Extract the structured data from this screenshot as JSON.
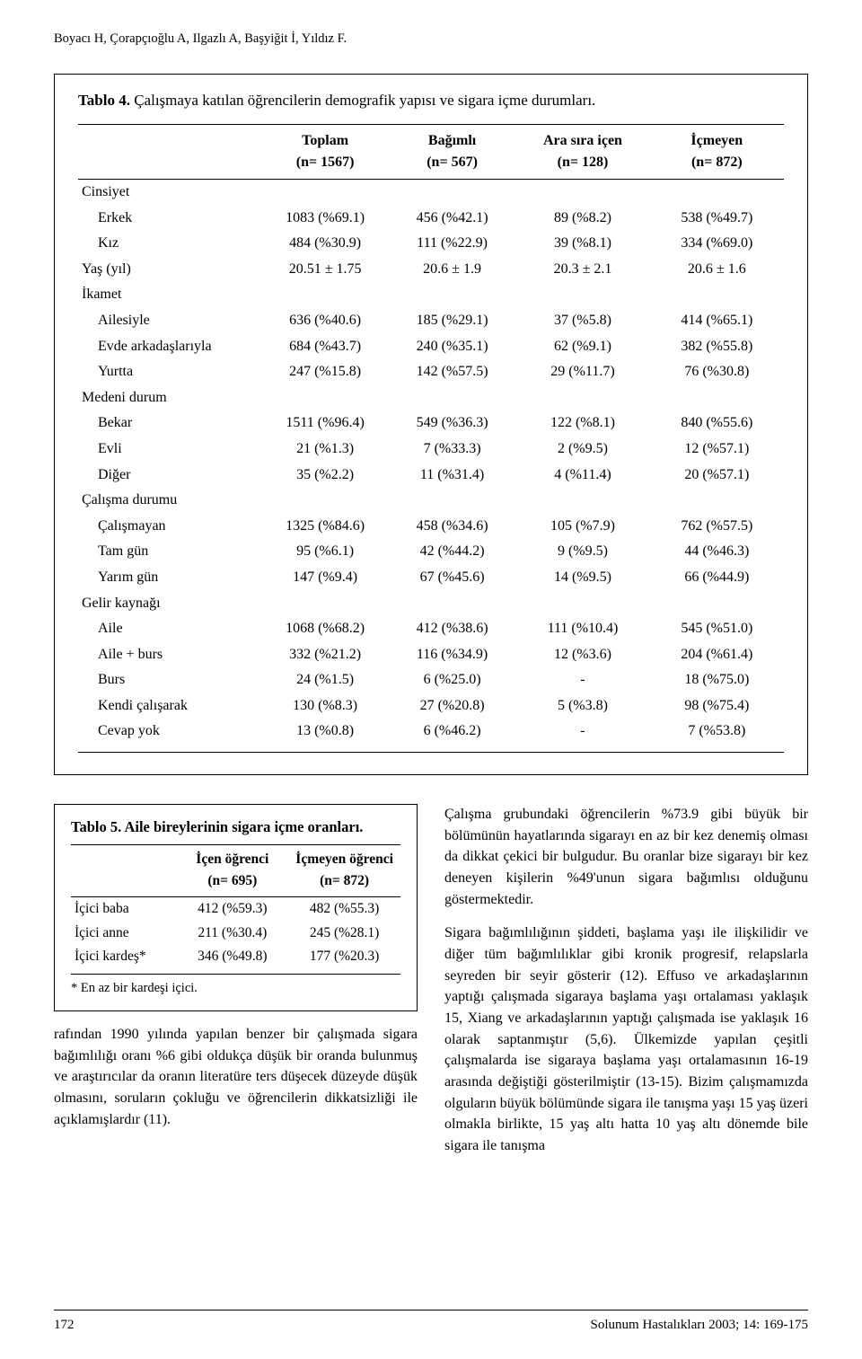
{
  "running_head": "Boyacı H, Çorapçıoğlu A, Ilgazlı A, Başyiğit İ, Yıldız F.",
  "table4": {
    "title_prefix": "Tablo 4. ",
    "title_rest": "Çalışmaya katılan öğrencilerin demografik yapısı ve sigara içme durumları.",
    "columns_line1": [
      "",
      "Toplam",
      "Bağımlı",
      "Ara sıra içen",
      "İçmeyen"
    ],
    "columns_line2": [
      "",
      "(n= 1567)",
      "(n= 567)",
      "(n= 128)",
      "(n= 872)"
    ],
    "col_widths_pct": [
      26,
      18,
      18,
      19,
      19
    ],
    "rows": [
      {
        "type": "section",
        "label": "Cinsiyet"
      },
      {
        "type": "data",
        "indent": true,
        "label": "Erkek",
        "v": [
          "1083 (%69.1)",
          "456 (%42.1)",
          "89 (%8.2)",
          "538 (%49.7)"
        ]
      },
      {
        "type": "data",
        "indent": true,
        "label": "Kız",
        "v": [
          "484 (%30.9)",
          "111 (%22.9)",
          "39 (%8.1)",
          "334 (%69.0)"
        ]
      },
      {
        "type": "data",
        "indent": false,
        "label": "Yaş (yıl)",
        "v": [
          "20.51 ± 1.75",
          "20.6 ± 1.9",
          "20.3 ± 2.1",
          "20.6 ± 1.6"
        ]
      },
      {
        "type": "section",
        "label": "İkamet"
      },
      {
        "type": "data",
        "indent": true,
        "label": "Ailesiyle",
        "v": [
          "636 (%40.6)",
          "185 (%29.1)",
          "37 (%5.8)",
          "414 (%65.1)"
        ]
      },
      {
        "type": "data",
        "indent": true,
        "label": "Evde arkadaşlarıyla",
        "v": [
          "684 (%43.7)",
          "240 (%35.1)",
          "62 (%9.1)",
          "382 (%55.8)"
        ]
      },
      {
        "type": "data",
        "indent": true,
        "label": "Yurtta",
        "v": [
          "247 (%15.8)",
          "142 (%57.5)",
          "29 (%11.7)",
          "76 (%30.8)"
        ]
      },
      {
        "type": "section",
        "label": "Medeni durum"
      },
      {
        "type": "data",
        "indent": true,
        "label": "Bekar",
        "v": [
          "1511 (%96.4)",
          "549 (%36.3)",
          "122 (%8.1)",
          "840 (%55.6)"
        ]
      },
      {
        "type": "data",
        "indent": true,
        "label": "Evli",
        "v": [
          "21 (%1.3)",
          "7 (%33.3)",
          "2 (%9.5)",
          "12 (%57.1)"
        ]
      },
      {
        "type": "data",
        "indent": true,
        "label": "Diğer",
        "v": [
          "35 (%2.2)",
          "11 (%31.4)",
          "4 (%11.4)",
          "20 (%57.1)"
        ]
      },
      {
        "type": "section",
        "label": "Çalışma durumu"
      },
      {
        "type": "data",
        "indent": true,
        "label": "Çalışmayan",
        "v": [
          "1325 (%84.6)",
          "458 (%34.6)",
          "105 (%7.9)",
          "762 (%57.5)"
        ]
      },
      {
        "type": "data",
        "indent": true,
        "label": "Tam gün",
        "v": [
          "95 (%6.1)",
          "42 (%44.2)",
          "9 (%9.5)",
          "44 (%46.3)"
        ]
      },
      {
        "type": "data",
        "indent": true,
        "label": "Yarım gün",
        "v": [
          "147 (%9.4)",
          "67 (%45.6)",
          "14 (%9.5)",
          "66 (%44.9)"
        ]
      },
      {
        "type": "section",
        "label": "Gelir kaynağı"
      },
      {
        "type": "data",
        "indent": true,
        "label": "Aile",
        "v": [
          "1068 (%68.2)",
          "412 (%38.6)",
          "111 (%10.4)",
          "545 (%51.0)"
        ]
      },
      {
        "type": "data",
        "indent": true,
        "label": "Aile + burs",
        "v": [
          "332 (%21.2)",
          "116 (%34.9)",
          "12 (%3.6)",
          "204 (%61.4)"
        ]
      },
      {
        "type": "data",
        "indent": true,
        "label": "Burs",
        "v": [
          "24 (%1.5)",
          "6 (%25.0)",
          "-",
          "18 (%75.0)"
        ]
      },
      {
        "type": "data",
        "indent": true,
        "label": "Kendi çalışarak",
        "v": [
          "130 (%8.3)",
          "27 (%20.8)",
          "5 (%3.8)",
          "98 (%75.4)"
        ]
      },
      {
        "type": "data",
        "indent": true,
        "label": "Cevap yok",
        "v": [
          "13 (%0.8)",
          "6 (%46.2)",
          "-",
          "7 (%53.8)"
        ],
        "last": true
      }
    ]
  },
  "table5": {
    "title": "Tablo 5. Aile bireylerinin sigara içme oranları.",
    "columns_line1": [
      "",
      "İçen öğrenci",
      "İçmeyen öğrenci"
    ],
    "columns_line2": [
      "",
      "(n= 695)",
      "(n= 872)"
    ],
    "col_widths_pct": [
      32,
      34,
      34
    ],
    "rows": [
      {
        "label": "İçici baba",
        "v": [
          "412 (%59.3)",
          "482 (%55.3)"
        ]
      },
      {
        "label": "İçici anne",
        "v": [
          "211 (%30.4)",
          "245 (%28.1)"
        ]
      },
      {
        "label": "İçici kardeş*",
        "v": [
          "346 (%49.8)",
          "177 (%20.3)"
        ],
        "last": true
      }
    ],
    "footnote": "* En az bir kardeşi içici."
  },
  "para_left": "rafından 1990 yılında yapılan benzer bir çalışmada sigara bağımlılığı oranı %6 gibi oldukça düşük bir oranda bulunmuş ve araştırıcılar da oranın literatüre ters düşecek düzeyde düşük olmasını, soruların çokluğu ve öğrencilerin dikkatsizliği ile açıklamışlardır (11).",
  "para_right_1": "Çalışma grubundaki öğrencilerin %73.9 gibi büyük bir bölümünün hayatlarında sigarayı en az bir kez denemiş olması da dikkat çekici bir bulgudur. Bu oranlar bize sigarayı bir kez deneyen kişilerin %49'unun sigara bağımlısı olduğunu göstermektedir.",
  "para_right_2": "Sigara bağımlılığının şiddeti, başlama yaşı ile ilişkilidir ve diğer tüm bağımlılıklar gibi kronik progresif, relapslarla seyreden bir seyir gösterir (12). Effuso ve arkadaşlarının yaptığı çalışmada sigaraya başlama yaşı ortalaması yaklaşık 15, Xiang ve arkadaşlarının yaptığı çalışmada ise yaklaşık 16 olarak saptanmıştır (5,6). Ülkemizde yapılan çeşitli çalışmalarda ise sigaraya başlama yaşı ortalamasının 16-19 arasında değiştiği gösterilmiştir (13-15). Bizim çalışmamızda olguların büyük bölümünde sigara ile tanışma yaşı 15 yaş üzeri olmakla birlikte, 15 yaş altı hatta 10 yaş altı dönemde bile sigara ile tanışma",
  "footer": {
    "page": "172",
    "journal": "Solunum Hastalıkları 2003; 14: 169-175"
  }
}
